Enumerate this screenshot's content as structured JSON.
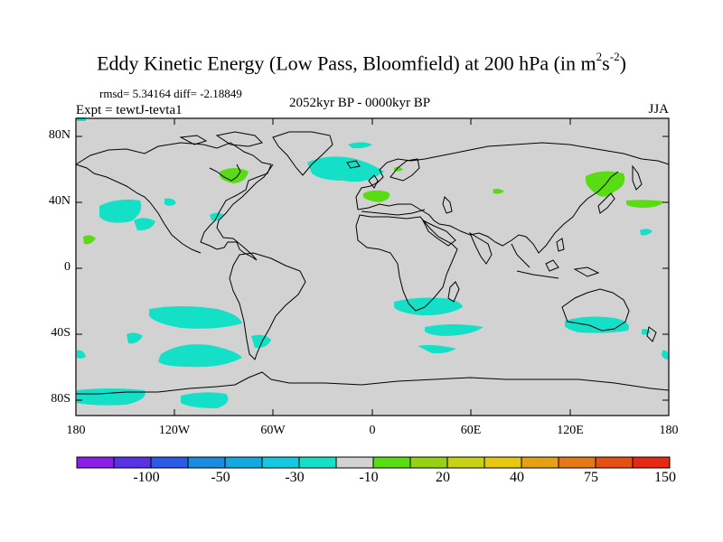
{
  "title_text": "Eddy Kinetic Energy (Low Pass, Bloomfield) at 200 hPa (in m",
  "title_sup1": "2",
  "title_s": "s",
  "title_sup2": "-2",
  "title_close": ")",
  "stats": "rmsd= 5.34164 diff= -2.18849",
  "expt": "Expt = tewtJ-tevta1",
  "period": "2052kyr BP - 0000kyr BP",
  "season": "JJA",
  "lat_labels": [
    "80N",
    "40N",
    "0",
    "40S",
    "80S"
  ],
  "lon_labels": [
    "180",
    "120W",
    "60W",
    "0",
    "60E",
    "120E",
    "180"
  ],
  "colorbar": {
    "labels": [
      "-100",
      "-50",
      "-30",
      "-10",
      "20",
      "40",
      "75",
      "150"
    ],
    "colors": [
      "#8a1ee6",
      "#5a32e6",
      "#2a5ae6",
      "#1a8ce0",
      "#14a8e0",
      "#14c8e0",
      "#14e0c8",
      "#d2d2d2",
      "#5adc14",
      "#96d214",
      "#c8d214",
      "#e6c814",
      "#e6a014",
      "#e67814",
      "#e65014",
      "#e62814"
    ]
  },
  "colors": {
    "land_ocean_fill": "#d2d2d2",
    "negative_anomaly": "#14e0c8",
    "positive_anomaly": "#5adc14",
    "coastline": "#000000"
  }
}
